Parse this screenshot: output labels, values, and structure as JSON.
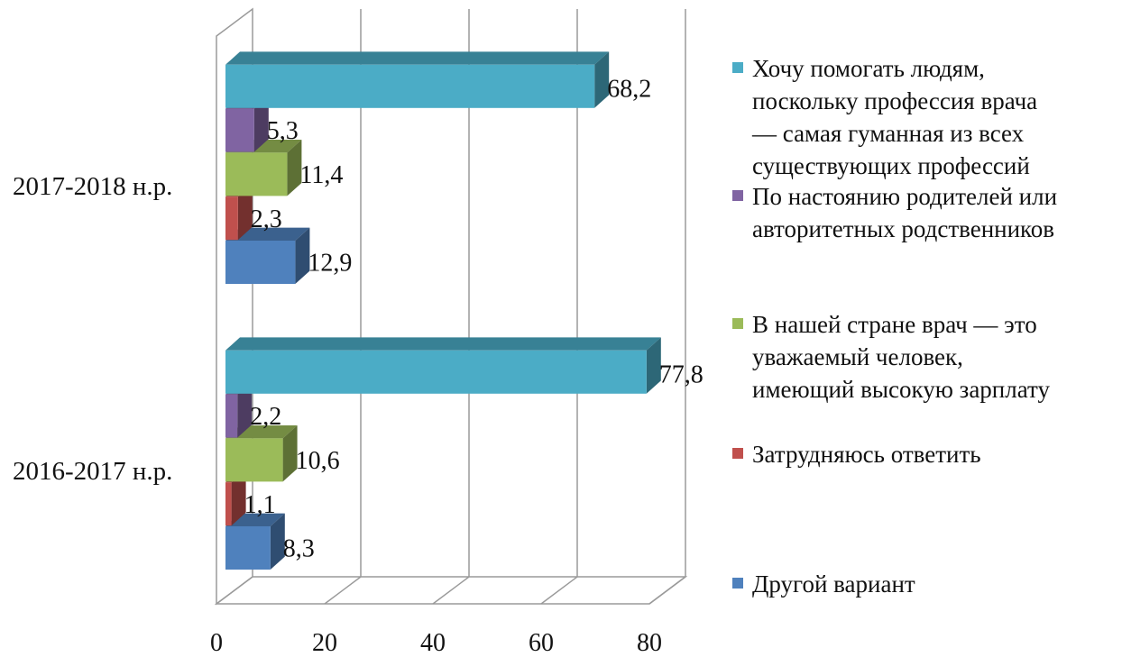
{
  "chart_data": {
    "type": "bar",
    "orientation": "horizontal",
    "three_d": true,
    "categories": [
      "2016-2017 н.р.",
      "2017-2018 н.р."
    ],
    "series": [
      {
        "name": "Другой вариант",
        "color": "#4f81bd",
        "values": [
          8.3,
          12.9
        ],
        "labels": [
          "8,3",
          "12,9"
        ]
      },
      {
        "name": "Затрудняюсь ответить",
        "color": "#c0504d",
        "values": [
          1.1,
          2.3
        ],
        "labels": [
          "1,1",
          "2,3"
        ]
      },
      {
        "name": "В нашей стране врач — это уважаемый человек, имеющий высокую зарплату",
        "color": "#9bbb59",
        "values": [
          10.6,
          11.4
        ],
        "labels": [
          "10,6",
          "11,4"
        ]
      },
      {
        "name": "По настоянию родителей или авторитетных родственников",
        "color": "#8064a2",
        "values": [
          2.2,
          5.3
        ],
        "labels": [
          "2,2",
          "5,3"
        ]
      },
      {
        "name": "Хочу помогать людям, поскольку профессия врача — самая гуманная из всех существующих профессий",
        "color": "#4bacc6",
        "values": [
          77.8,
          68.2
        ],
        "labels": [
          "77,8",
          "68,2"
        ]
      }
    ],
    "xlim": [
      0,
      80
    ],
    "xticks": [
      "0",
      "20",
      "40",
      "60",
      "80"
    ],
    "grid": true,
    "legend_position": "right"
  },
  "legend": {
    "items": [
      {
        "label_lines": [
          "Хочу помогать людям,",
          "поскольку профессия врача",
          "— самая гуманная из всех",
          "существующих профессий"
        ],
        "color": "#4bacc6"
      },
      {
        "label_lines": [
          "По настоянию родителей или",
          "авторитетных родственников"
        ],
        "color": "#8064a2"
      },
      {
        "label_lines": [
          "В нашей стране врач — это",
          "уважаемый человек,",
          "имеющий высокую зарплату"
        ],
        "color": "#9bbb59"
      },
      {
        "label_lines": [
          "Затрудняюсь ответить"
        ],
        "color": "#c0504d"
      },
      {
        "label_lines": [
          "Другой вариант"
        ],
        "color": "#4f81bd"
      }
    ]
  }
}
